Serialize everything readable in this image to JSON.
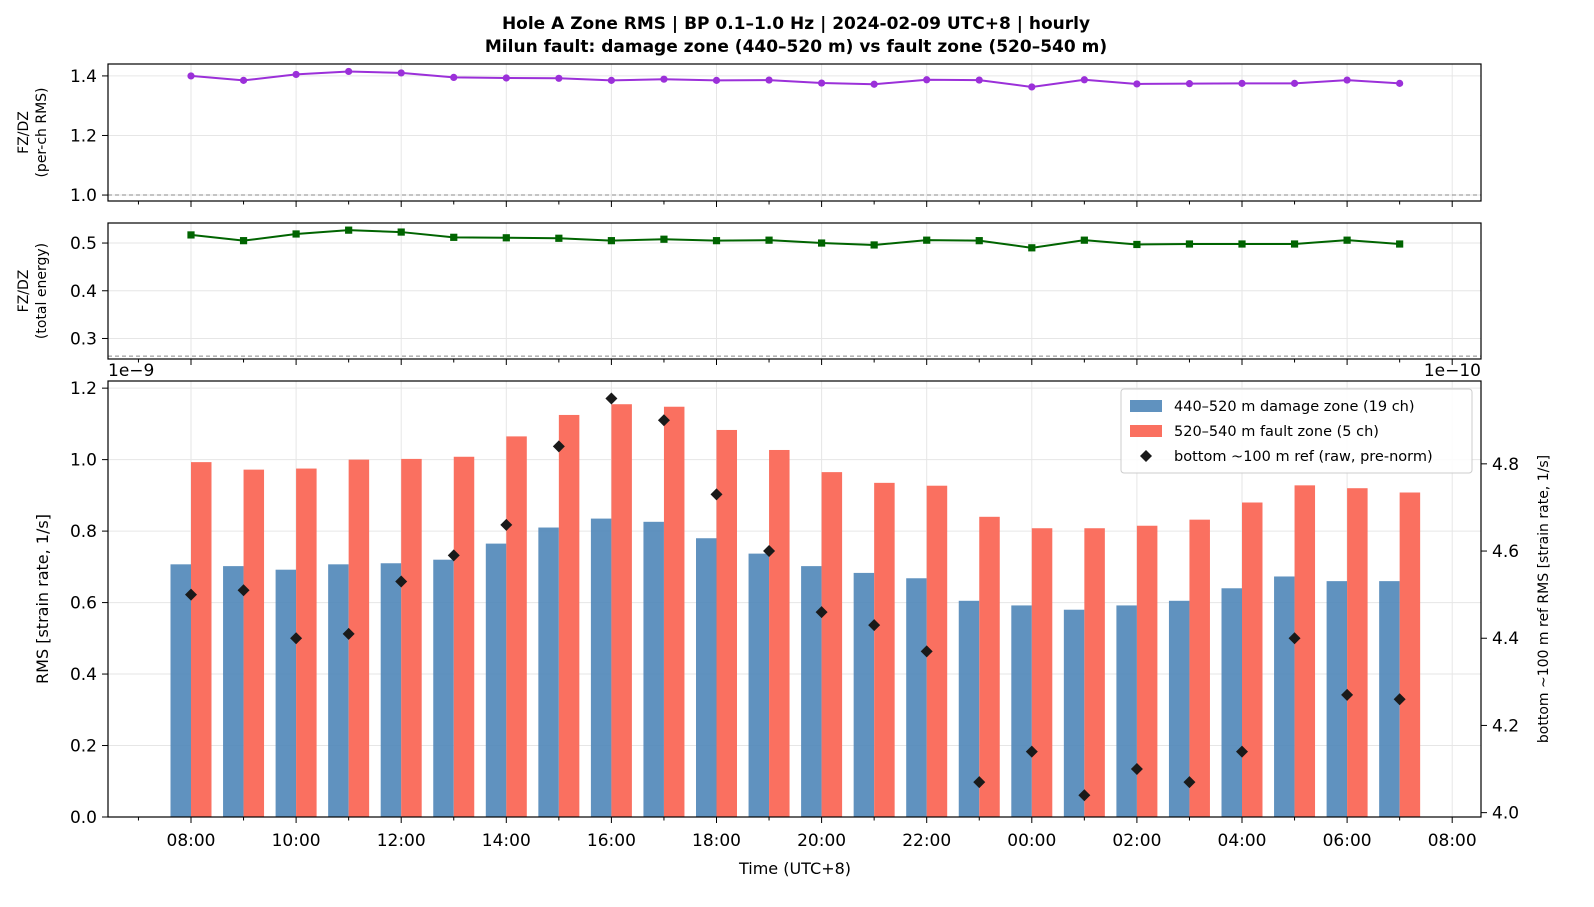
{
  "figure": {
    "title_line1": "Hole A Zone RMS  |  BP 0.1–1.0 Hz  |  2024-02-09 UTC+8  |  hourly",
    "title_line2": "Milun fault: damage zone (440–520 m) vs fault zone (520–540 m)"
  },
  "chart_data": [
    {
      "type": "line",
      "panel": "top",
      "ylabel": [
        "FZ/DZ",
        "(per-ch RMS)"
      ],
      "ylim": [
        0.98,
        1.44
      ],
      "yticks": [
        "1.0",
        "1.2",
        "1.4"
      ],
      "ytick_values": [
        1.0,
        1.2,
        1.4
      ],
      "reference_line": 1.0,
      "grid": true,
      "color": "#9b30d9",
      "marker": "circle",
      "series": [
        {
          "values": [
            1.4,
            1.385,
            1.405,
            1.415,
            1.41,
            1.395,
            1.393,
            1.392,
            1.385,
            1.389,
            1.385,
            1.386,
            1.376,
            1.372,
            1.387,
            1.386,
            1.363,
            1.387,
            1.373,
            1.374,
            1.375,
            1.375,
            1.386,
            1.375
          ]
        }
      ]
    },
    {
      "type": "line",
      "panel": "middle",
      "ylabel": [
        "FZ/DZ",
        "(total energy)"
      ],
      "ylim": [
        0.257,
        0.542
      ],
      "yticks": [
        "0.3",
        "0.4",
        "0.5"
      ],
      "ytick_values": [
        0.3,
        0.4,
        0.5
      ],
      "reference_line": 0.263,
      "grid": true,
      "color": "#006400",
      "marker": "square",
      "series": [
        {
          "values": [
            0.517,
            0.505,
            0.519,
            0.527,
            0.523,
            0.512,
            0.511,
            0.51,
            0.505,
            0.508,
            0.505,
            0.506,
            0.5,
            0.496,
            0.506,
            0.505,
            0.49,
            0.506,
            0.497,
            0.498,
            0.498,
            0.498,
            0.506,
            0.498
          ]
        }
      ]
    },
    {
      "type": "bar",
      "panel": "bottom",
      "categories": [
        "08:00",
        "09:00",
        "10:00",
        "11:00",
        "12:00",
        "13:00",
        "14:00",
        "15:00",
        "16:00",
        "17:00",
        "18:00",
        "19:00",
        "20:00",
        "21:00",
        "22:00",
        "23:00",
        "00:00",
        "01:00",
        "02:00",
        "03:00",
        "04:00",
        "05:00",
        "06:00",
        "07:00"
      ],
      "xticks": [
        "08:00",
        "10:00",
        "12:00",
        "14:00",
        "16:00",
        "18:00",
        "20:00",
        "22:00",
        "00:00",
        "02:00",
        "04:00",
        "06:00",
        "08:00"
      ],
      "xlabel": "Time (UTC+8)",
      "ylabel": "RMS  [strain rate, 1/s]",
      "ylim": [
        0,
        1.22
      ],
      "yticks": [
        "0.0",
        "0.2",
        "0.4",
        "0.6",
        "0.8",
        "1.0",
        "1.2"
      ],
      "ytick_values": [
        0,
        0.2,
        0.4,
        0.6,
        0.8,
        1.0,
        1.2
      ],
      "offset_text": "1e−9",
      "y2label": "bottom ~100 m ref RMS  [strain rate, 1/s]",
      "y2lim": [
        3.99,
        4.99
      ],
      "y2ticks": [
        "4.0",
        "4.2",
        "4.4",
        "4.6",
        "4.8"
      ],
      "y2tick_values": [
        4.0,
        4.2,
        4.4,
        4.6,
        4.8
      ],
      "offset_text2": "1e−10",
      "legend_position": "top-right",
      "grid": true,
      "series": [
        {
          "name": "440–520 m  damage zone (19 ch)",
          "kind": "bar",
          "color": "#4f86b8",
          "values": [
            0.707,
            0.702,
            0.692,
            0.707,
            0.71,
            0.72,
            0.765,
            0.81,
            0.835,
            0.826,
            0.78,
            0.737,
            0.702,
            0.683,
            0.668,
            0.605,
            0.592,
            0.58,
            0.592,
            0.605,
            0.64,
            0.673,
            0.66,
            0.66
          ]
        },
        {
          "name": "520–540 m  fault zone (5 ch)",
          "kind": "bar",
          "color": "#fa7060",
          "values": [
            0.993,
            0.972,
            0.975,
            1.0,
            1.002,
            1.008,
            1.065,
            1.125,
            1.155,
            1.148,
            1.083,
            1.027,
            0.965,
            0.935,
            0.927,
            0.84,
            0.808,
            0.808,
            0.815,
            0.832,
            0.88,
            0.928,
            0.92,
            0.908
          ]
        },
        {
          "name": "bottom ~100 m ref (raw, pre-norm)",
          "kind": "marker",
          "axis": "right",
          "color": "#1a1a1a",
          "values": [
            4.5,
            4.51,
            4.4,
            4.41,
            4.53,
            4.59,
            4.66,
            4.84,
            4.95,
            4.9,
            4.73,
            4.6,
            4.46,
            4.43,
            4.37,
            4.07,
            4.14,
            4.04,
            4.1,
            4.07,
            4.14,
            4.4,
            4.27,
            4.26
          ]
        }
      ]
    }
  ]
}
